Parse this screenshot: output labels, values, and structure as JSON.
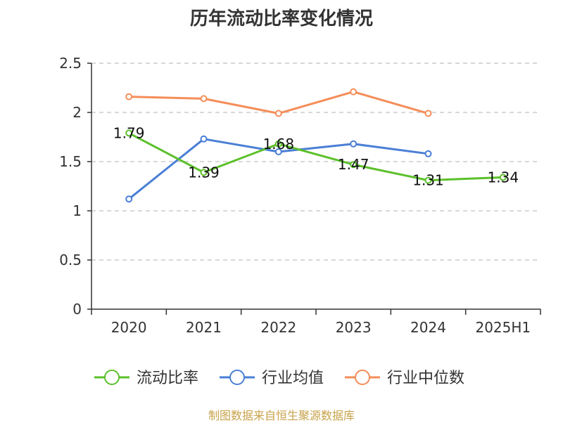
{
  "title": "历年流动比率变化情况",
  "source_note": "制图数据来自恒生聚源数据库",
  "chart_data": {
    "type": "line",
    "title": "历年流动比率变化情况",
    "categories": [
      "2020",
      "2021",
      "2022",
      "2023",
      "2024",
      "2025H1"
    ],
    "ylim": [
      0,
      2.5
    ],
    "yticks": [
      "0",
      "0.5",
      "1",
      "1.5",
      "2",
      "2.5"
    ],
    "ytick_values": [
      0,
      0.5,
      1,
      1.5,
      2,
      2.5
    ],
    "grid": true,
    "legend_position": "bottom",
    "series": [
      {
        "name": "流动比率",
        "color": "#5cc02a",
        "values": [
          1.79,
          1.39,
          1.68,
          1.47,
          1.31,
          1.34
        ],
        "labels": [
          "1.79",
          "1.39",
          "1.68",
          "1.47",
          "1.31",
          "1.34"
        ]
      },
      {
        "name": "行业均值",
        "color": "#4a7fd6",
        "values": [
          1.12,
          1.73,
          1.6,
          1.68,
          1.58,
          null
        ]
      },
      {
        "name": "行业中位数",
        "color": "#f58d58",
        "values": [
          2.16,
          2.14,
          1.99,
          2.21,
          1.99,
          null
        ]
      }
    ]
  }
}
